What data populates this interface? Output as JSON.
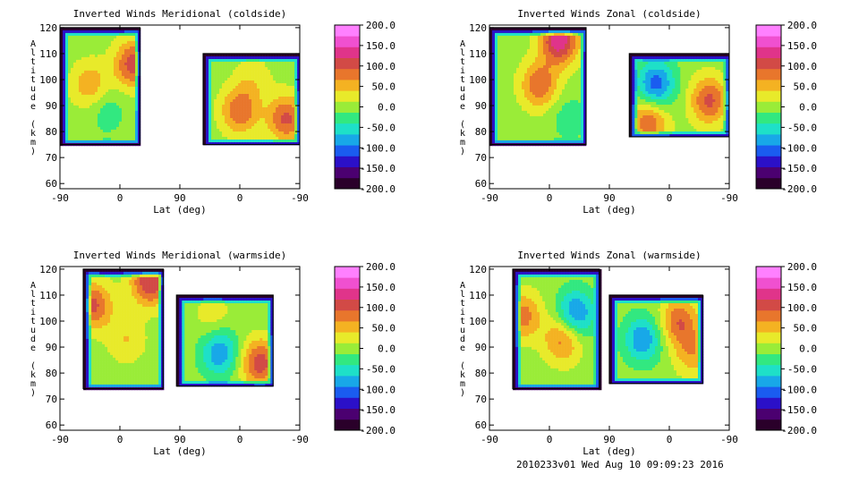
{
  "footer": {
    "stamp": "2010233v01 Wed Aug 10 09:09:23 2016"
  },
  "colormap": [
    "#2a002a",
    "#4b0070",
    "#2b10c8",
    "#1a5cf0",
    "#18a8e8",
    "#1ee0c8",
    "#32e880",
    "#9aec38",
    "#e8ea2a",
    "#f4b222",
    "#e8762c",
    "#d24a46",
    "#e0348a",
    "#f050d0",
    "#ff80ff"
  ],
  "chart_data": [
    {
      "type": "heatmap",
      "title": "Inverted Winds Meridional (coldside)",
      "xlabel": "Lat (deg)",
      "ylabel": "Altitude (km)",
      "x_ticks": [
        "-90",
        "0",
        "90",
        "0",
        "-90"
      ],
      "y_ticks": [
        "60",
        "70",
        "80",
        "90",
        "100",
        "110",
        "120"
      ],
      "ylim": [
        58,
        121
      ],
      "colorbar": {
        "ticks": [
          "200.0",
          "150.0",
          "100.0",
          "50.0",
          "0.0",
          "-50.0",
          "-100.0",
          "-150.0",
          "-200.0"
        ],
        "range": [
          -200,
          200
        ]
      },
      "blocks": [
        {
          "lat_range": [
            -90,
            30
          ],
          "alt_range": [
            75,
            120
          ]
        },
        {
          "lat_range": [
            125,
            270
          ],
          "alt_range": [
            75,
            110
          ]
        }
      ],
      "features": [
        {
          "lat": -45,
          "alt": 98,
          "value": 60
        },
        {
          "lat": 20,
          "alt": 106,
          "value": 110
        },
        {
          "lat": -20,
          "alt": 88,
          "value": -30
        },
        {
          "lat": 180,
          "alt": 88,
          "value": 90
        },
        {
          "lat": 250,
          "alt": 85,
          "value": 100
        },
        {
          "lat": 200,
          "alt": 100,
          "value": 30
        }
      ]
    },
    {
      "type": "heatmap",
      "title": "Inverted Winds Zonal (coldside)",
      "xlabel": "Lat (deg)",
      "ylabel": "Altitude (km)",
      "x_ticks": [
        "-90",
        "0",
        "90",
        "0",
        "-90"
      ],
      "y_ticks": [
        "60",
        "70",
        "80",
        "90",
        "100",
        "110",
        "120"
      ],
      "ylim": [
        58,
        121
      ],
      "colorbar": {
        "ticks": [
          "200.0",
          "150.0",
          "100.0",
          "50.0",
          "0.0",
          "-50.0",
          "-100.0",
          "-150.0",
          "-200.0"
        ],
        "range": [
          -200,
          200
        ]
      },
      "blocks": [
        {
          "lat_range": [
            -90,
            55
          ],
          "alt_range": [
            75,
            120
          ]
        },
        {
          "lat_range": [
            120,
            270
          ],
          "alt_range": [
            78,
            110
          ]
        }
      ],
      "features": [
        {
          "lat": -15,
          "alt": 98,
          "value": 90
        },
        {
          "lat": 15,
          "alt": 115,
          "value": 140
        },
        {
          "lat": 30,
          "alt": 85,
          "value": -30
        },
        {
          "lat": 160,
          "alt": 98,
          "value": -110
        },
        {
          "lat": 240,
          "alt": 92,
          "value": 100
        },
        {
          "lat": 150,
          "alt": 84,
          "value": 90
        }
      ]
    },
    {
      "type": "heatmap",
      "title": "Inverted Winds Meridional (warmside)",
      "xlabel": "Lat (deg)",
      "ylabel": "Altitude (km)",
      "x_ticks": [
        "-90",
        "0",
        "90",
        "0",
        "-90"
      ],
      "y_ticks": [
        "60",
        "70",
        "80",
        "90",
        "100",
        "110",
        "120"
      ],
      "ylim": [
        58,
        121
      ],
      "colorbar": {
        "ticks": [
          "200.0",
          "150.0",
          "100.0",
          "50.0",
          "0.0",
          "-50.0",
          "-100.0",
          "-150.0",
          "-200.0"
        ],
        "range": [
          -200,
          200
        ]
      },
      "blocks": [
        {
          "lat_range": [
            -55,
            65
          ],
          "alt_range": [
            74,
            120
          ]
        },
        {
          "lat_range": [
            85,
            230
          ],
          "alt_range": [
            75,
            110
          ]
        }
      ],
      "features": [
        {
          "lat": -40,
          "alt": 106,
          "value": 100
        },
        {
          "lat": 45,
          "alt": 115,
          "value": 120
        },
        {
          "lat": 10,
          "alt": 93,
          "value": 40
        },
        {
          "lat": 210,
          "alt": 84,
          "value": 110
        },
        {
          "lat": 150,
          "alt": 88,
          "value": -90
        },
        {
          "lat": 140,
          "alt": 102,
          "value": 30
        }
      ]
    },
    {
      "type": "heatmap",
      "title": "Inverted Winds Zonal (warmside)",
      "xlabel": "Lat (deg)",
      "ylabel": "Altitude (km)",
      "x_ticks": [
        "-90",
        "0",
        "90",
        "0",
        "-90"
      ],
      "y_ticks": [
        "60",
        "70",
        "80",
        "90",
        "100",
        "110",
        "120"
      ],
      "ylim": [
        58,
        121
      ],
      "colorbar": {
        "ticks": [
          "200.0",
          "150.0",
          "100.0",
          "50.0",
          "0.0",
          "-50.0",
          "-100.0",
          "-150.0",
          "-200.0"
        ],
        "range": [
          -200,
          200
        ]
      },
      "blocks": [
        {
          "lat_range": [
            -55,
            75
          ],
          "alt_range": [
            74,
            120
          ]
        },
        {
          "lat_range": [
            90,
            230
          ],
          "alt_range": [
            76,
            110
          ]
        }
      ],
      "features": [
        {
          "lat": -40,
          "alt": 102,
          "value": 80
        },
        {
          "lat": 20,
          "alt": 93,
          "value": 80
        },
        {
          "lat": 40,
          "alt": 103,
          "value": -100
        },
        {
          "lat": 195,
          "alt": 100,
          "value": 90
        },
        {
          "lat": 140,
          "alt": 93,
          "value": -90
        },
        {
          "lat": 215,
          "alt": 88,
          "value": 60
        }
      ]
    }
  ]
}
